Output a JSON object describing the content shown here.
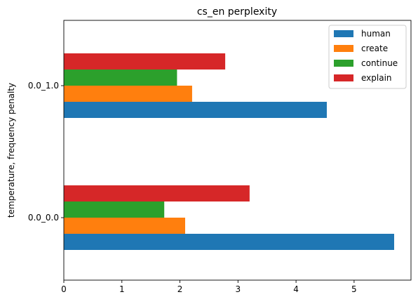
{
  "chart_data": {
    "type": "bar",
    "orientation": "horizontal",
    "title": "cs_en perplexity",
    "xlabel": "",
    "ylabel": "temperature, frequency penalty",
    "categories": [
      "0.0_0.0",
      "0.0_1.0"
    ],
    "xlim": [
      0,
      5.98
    ],
    "xticks": [
      0,
      1,
      2,
      3,
      4,
      5
    ],
    "legend_position": "top-right",
    "grid": false,
    "series": [
      {
        "name": "human",
        "color": "#1f77b4",
        "values": [
          5.69,
          4.53
        ]
      },
      {
        "name": "create",
        "color": "#ff7f0e",
        "values": [
          2.09,
          2.21
        ]
      },
      {
        "name": "continue",
        "color": "#2ca02c",
        "values": [
          1.73,
          1.95
        ]
      },
      {
        "name": "explain",
        "color": "#d62728",
        "values": [
          3.2,
          2.78
        ]
      }
    ]
  }
}
